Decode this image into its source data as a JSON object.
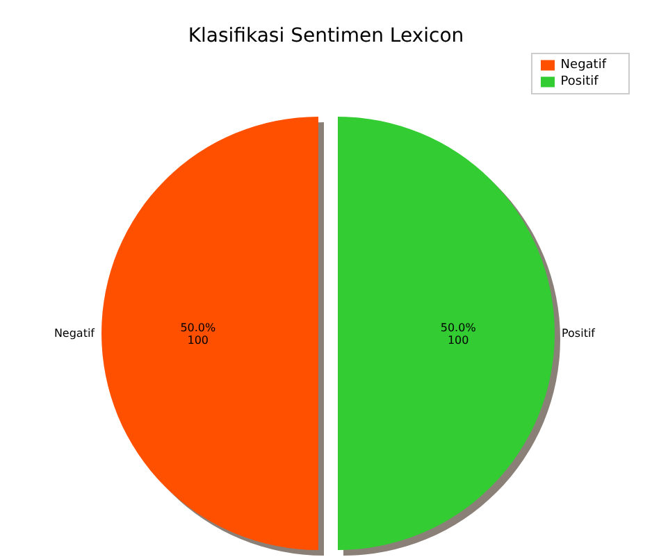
{
  "chart_data": {
    "type": "pie",
    "title": "Klasifikasi Sentimen Lexicon",
    "categories": [
      "Negatif",
      "Positif"
    ],
    "values": [
      100,
      100
    ],
    "colors": [
      "#ff5000",
      "#33cc33"
    ],
    "value_labels": [
      "50.0%\n100",
      "50.0%\n100"
    ],
    "legend": "top right"
  }
}
